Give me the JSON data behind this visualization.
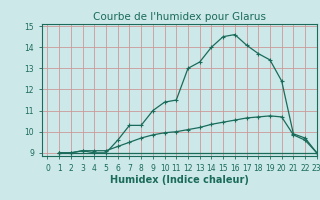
{
  "title": "Courbe de l'humidex pour Glarus",
  "xlabel": "Humidex (Indice chaleur)",
  "bg_color": "#cce8e8",
  "grid_color": "#cc9999",
  "line_color": "#1a6b5a",
  "xlim": [
    -0.5,
    23
  ],
  "ylim": [
    8.85,
    15.1
  ],
  "yticks": [
    9,
    10,
    11,
    12,
    13,
    14,
    15
  ],
  "xticks": [
    0,
    1,
    2,
    3,
    4,
    5,
    6,
    7,
    8,
    9,
    10,
    11,
    12,
    13,
    14,
    15,
    16,
    17,
    18,
    19,
    20,
    21,
    22,
    23
  ],
  "line1_x": [
    1,
    2,
    3,
    4,
    5,
    6,
    7,
    8,
    9,
    10,
    11,
    12,
    13,
    14,
    15,
    16,
    17,
    18,
    19,
    20,
    21,
    22,
    23
  ],
  "line1_y": [
    9.0,
    9.0,
    9.1,
    9.0,
    9.0,
    9.6,
    10.3,
    10.3,
    11.0,
    11.4,
    11.5,
    13.0,
    13.3,
    14.0,
    14.5,
    14.6,
    14.1,
    13.7,
    13.4,
    12.4,
    9.9,
    9.7,
    9.0
  ],
  "line2_x": [
    1,
    2,
    3,
    4,
    5,
    6,
    7,
    8,
    9,
    10,
    11,
    12,
    13,
    14,
    15,
    16,
    17,
    18,
    19,
    20,
    21,
    22,
    23
  ],
  "line2_y": [
    9.0,
    9.0,
    9.1,
    9.1,
    9.1,
    9.3,
    9.5,
    9.7,
    9.85,
    9.95,
    10.0,
    10.1,
    10.2,
    10.35,
    10.45,
    10.55,
    10.65,
    10.7,
    10.75,
    10.7,
    9.85,
    9.6,
    9.0
  ],
  "line3_x": [
    1,
    23
  ],
  "line3_y": [
    9.0,
    9.0
  ],
  "title_fontsize": 7.5,
  "xlabel_fontsize": 7,
  "tick_fontsize": 5.5
}
